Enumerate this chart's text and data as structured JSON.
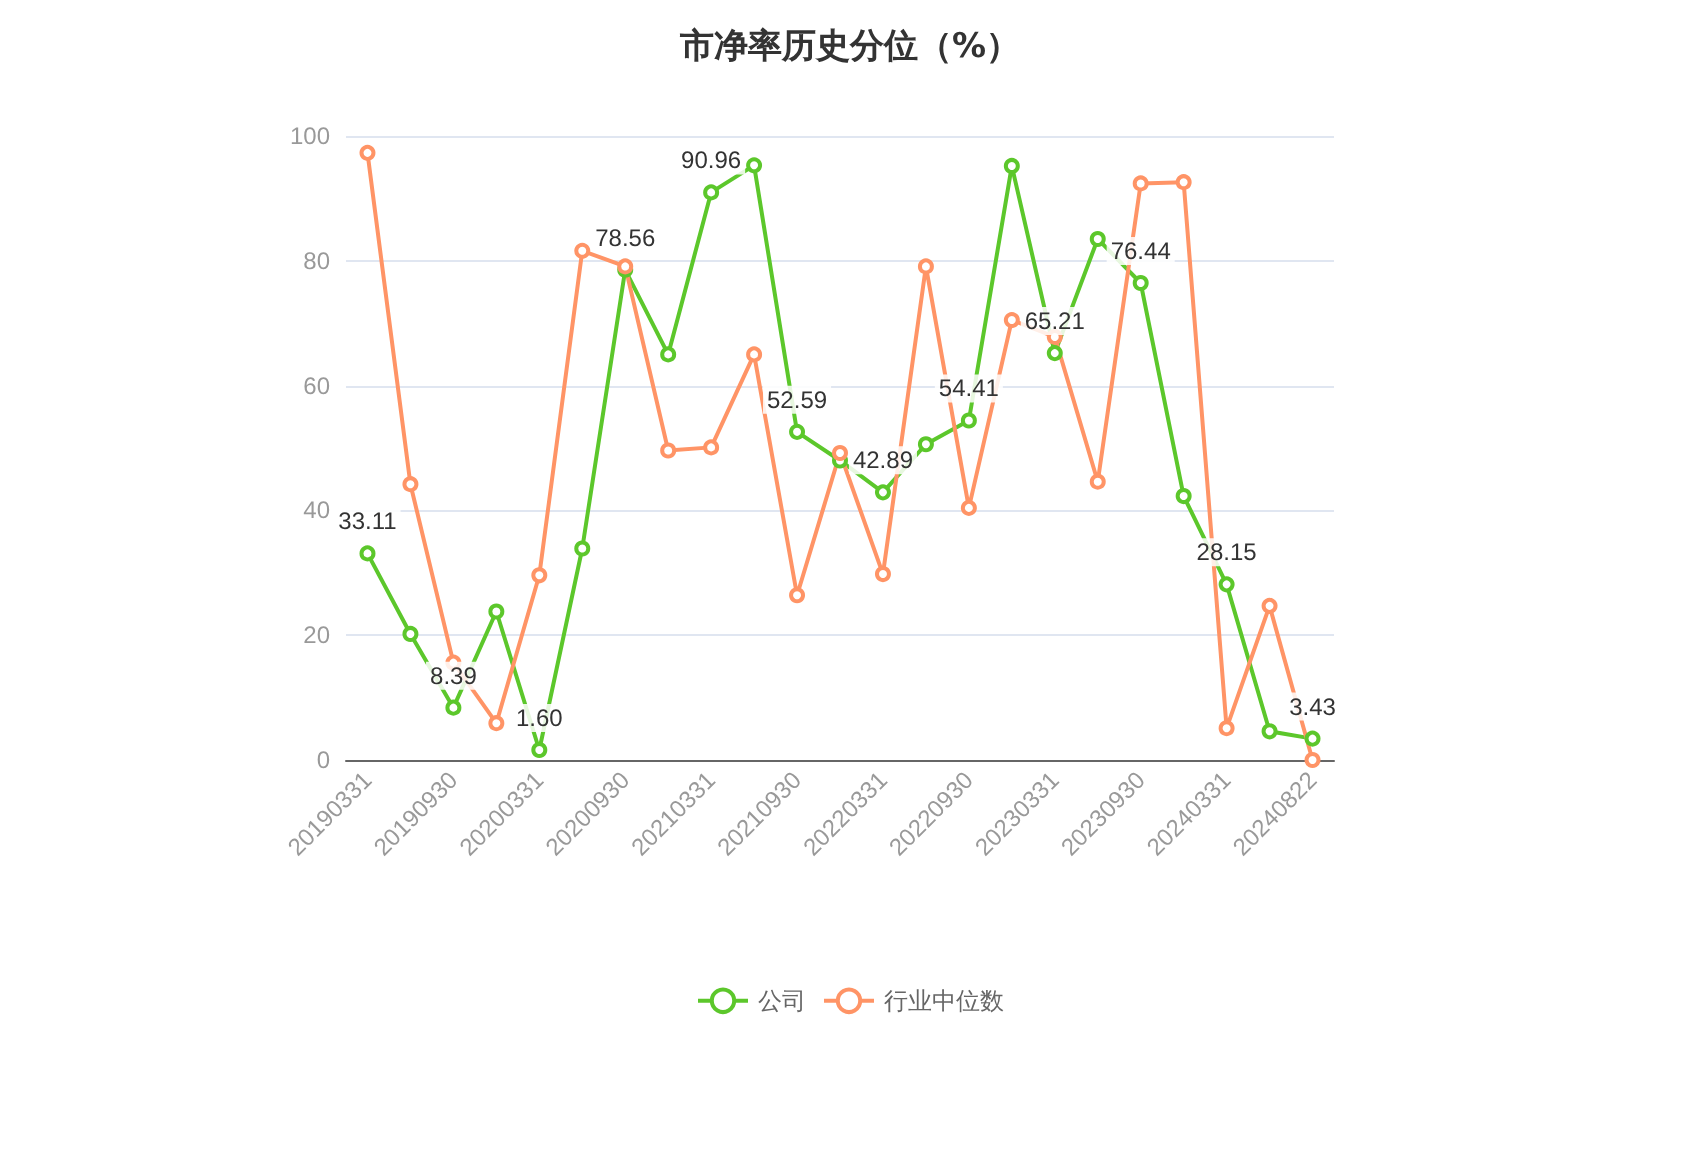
{
  "chart_data": {
    "type": "line",
    "title": "市净率历史分位（%）",
    "categories": [
      "20190331",
      null,
      "20190930",
      null,
      "20200331",
      null,
      "20200930",
      null,
      "20210331",
      null,
      "20210930",
      null,
      "20220331",
      null,
      "20220930",
      null,
      "20230331",
      null,
      "20230930",
      null,
      "20240331",
      null,
      "20240822"
    ],
    "series": [
      {
        "name": "公司",
        "color": "#5cc72b",
        "values": [
          33.11,
          20.2,
          8.39,
          23.8,
          1.6,
          33.9,
          78.56,
          65,
          90.96,
          95.3,
          52.59,
          48,
          42.89,
          50.6,
          54.41,
          95.2,
          65.21,
          83.5,
          76.44,
          42.3,
          28.15,
          4.6,
          3.43
        ],
        "value_labels": [
          "33.11",
          null,
          "8.39",
          null,
          "1.60",
          null,
          "78.56",
          null,
          "90.96",
          null,
          "52.59",
          null,
          "42.89",
          null,
          "54.41",
          null,
          "65.21",
          null,
          "76.44",
          null,
          "28.15",
          null,
          "3.43"
        ]
      },
      {
        "name": "行业中位数",
        "color": "#ff9466",
        "values": [
          97.3,
          44.2,
          15.6,
          5.9,
          29.6,
          81.6,
          79.1,
          49.6,
          50.1,
          65,
          26.4,
          49.2,
          29.8,
          79.1,
          40.4,
          70.5,
          67.8,
          44.6,
          92.4,
          92.6,
          5.1,
          24.7,
          0
        ]
      }
    ],
    "ylim": [
      0,
      100
    ],
    "yticks": [
      0,
      20,
      40,
      60,
      80,
      100
    ],
    "grid": "y",
    "legend": "bottom",
    "marker": "circle",
    "line_style": "solid"
  }
}
